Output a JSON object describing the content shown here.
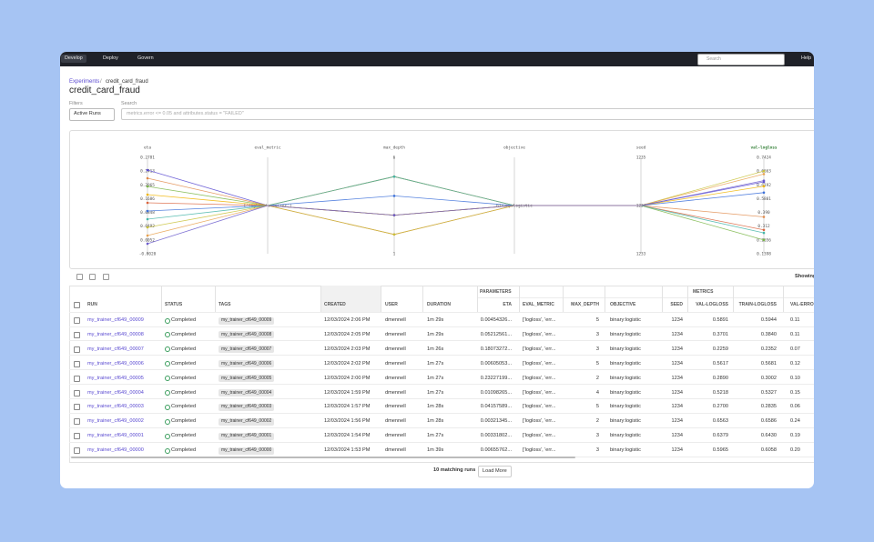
{
  "nav": {
    "items": [
      "Develop",
      "Deploy",
      "Govern"
    ],
    "search_placeholder": "Search",
    "help": "Help"
  },
  "breadcrumb": {
    "parent": "Experiments",
    "separator": "/",
    "current": "credit_card_fraud"
  },
  "title": "credit_card_fraud",
  "filters": {
    "label": "Filters",
    "value": "Active Runs"
  },
  "search": {
    "label": "Search",
    "placeholder": "metrics.error <= 0.05 and attributes.status = \"FAILED\""
  },
  "parallel_chart": {
    "axes": [
      {
        "name": "eta",
        "ticks": [
          "0.2781",
          "0.2413",
          "0.2065",
          "0.1686",
          "0.0848",
          "0.0492",
          "0.0052",
          "-0.0020"
        ]
      },
      {
        "name": "eval_metric",
        "ticks": [
          "['logloss', 'error']"
        ]
      },
      {
        "name": "max_depth",
        "ticks": [
          "6",
          "1"
        ]
      },
      {
        "name": "objective",
        "ticks": [
          "binary:logistic"
        ]
      },
      {
        "name": "seed",
        "ticks": [
          "1235",
          "1234",
          "1233"
        ]
      },
      {
        "name": "val-logloss",
        "ticks": [
          "0.7424",
          "0.6663",
          "0.6192",
          "0.5801",
          "0.390",
          "0.312",
          "0.2656",
          "0.1398"
        ]
      }
    ]
  },
  "toolbar": {
    "showing": "Showing"
  },
  "table": {
    "groups": {
      "parameters": "PARAMETERS",
      "metrics": "METRICS"
    },
    "columns": [
      "RUN",
      "STATUS",
      "TAGS",
      "CREATED",
      "USER",
      "DURATION",
      "ETA",
      "EVAL_METRIC",
      "MAX_DEPTH",
      "OBJECTIVE",
      "SEED",
      "VAL-LOGLOSS",
      "TRAIN-LOGLOSS",
      "VAL-ERROR"
    ],
    "rows": [
      [
        "my_trainer_cf649_00009",
        "Completed",
        "my_trainer_cf649_00009",
        "12/03/2024 2:06 PM",
        "dmennell",
        "1m 29s",
        "0.00454326...",
        "['logloss', 'err...",
        "5",
        "binary:logistic",
        "1234",
        "0.5891",
        "0.5944",
        "0.11"
      ],
      [
        "my_trainer_cf649_00008",
        "Completed",
        "my_trainer_cf649_00008",
        "12/03/2024 2:05 PM",
        "dmennell",
        "1m 29s",
        "0.05212561...",
        "['logloss', 'err...",
        "3",
        "binary:logistic",
        "1234",
        "0.3701",
        "0.3840",
        "0.11"
      ],
      [
        "my_trainer_cf649_00007",
        "Completed",
        "my_trainer_cf649_00007",
        "12/03/2024 2:03 PM",
        "dmennell",
        "1m 26s",
        "0.18073272...",
        "['logloss', 'err...",
        "3",
        "binary:logistic",
        "1234",
        "0.2259",
        "0.2352",
        "0.07"
      ],
      [
        "my_trainer_cf649_00006",
        "Completed",
        "my_trainer_cf649_00006",
        "12/03/2024 2:02 PM",
        "dmennell",
        "1m 27s",
        "0.00605053...",
        "['logloss', 'err...",
        "5",
        "binary:logistic",
        "1234",
        "0.5617",
        "0.5681",
        "0.12"
      ],
      [
        "my_trainer_cf649_00005",
        "Completed",
        "my_trainer_cf649_00005",
        "12/03/2024 2:00 PM",
        "dmennell",
        "1m 27s",
        "0.23227199...",
        "['logloss', 'err...",
        "2",
        "binary:logistic",
        "1234",
        "0.2890",
        "0.3002",
        "0.10"
      ],
      [
        "my_trainer_cf649_00004",
        "Completed",
        "my_trainer_cf649_00004",
        "12/03/2024 1:59 PM",
        "dmennell",
        "1m 27s",
        "0.01098265...",
        "['logloss', 'err...",
        "4",
        "binary:logistic",
        "1234",
        "0.5218",
        "0.5327",
        "0.15"
      ],
      [
        "my_trainer_cf649_00003",
        "Completed",
        "my_trainer_cf649_00003",
        "12/03/2024 1:57 PM",
        "dmennell",
        "1m 28s",
        "0.04157589...",
        "['logloss', 'err...",
        "5",
        "binary:logistic",
        "1234",
        "0.2700",
        "0.2835",
        "0.06"
      ],
      [
        "my_trainer_cf649_00002",
        "Completed",
        "my_trainer_cf649_00002",
        "12/03/2024 1:56 PM",
        "dmennell",
        "1m 28s",
        "0.00321345...",
        "['logloss', 'err...",
        "2",
        "binary:logistic",
        "1234",
        "0.6563",
        "0.6586",
        "0.24"
      ],
      [
        "my_trainer_cf649_00001",
        "Completed",
        "my_trainer_cf649_00001",
        "12/03/2024 1:54 PM",
        "dmennell",
        "1m 27s",
        "0.00331802...",
        "['logloss', 'err...",
        "3",
        "binary:logistic",
        "1234",
        "0.6379",
        "0.6430",
        "0.19"
      ],
      [
        "my_trainer_cf649_00000",
        "Completed",
        "my_trainer_cf649_00000",
        "12/03/2024 1:53 PM",
        "dmennell",
        "1m 39s",
        "0.00655762...",
        "['logloss', 'err...",
        "3",
        "binary:logistic",
        "1234",
        "0.5965",
        "0.6058",
        "0.20"
      ]
    ]
  },
  "footer": {
    "count": "10 matching runs",
    "load_more": "Load More"
  }
}
